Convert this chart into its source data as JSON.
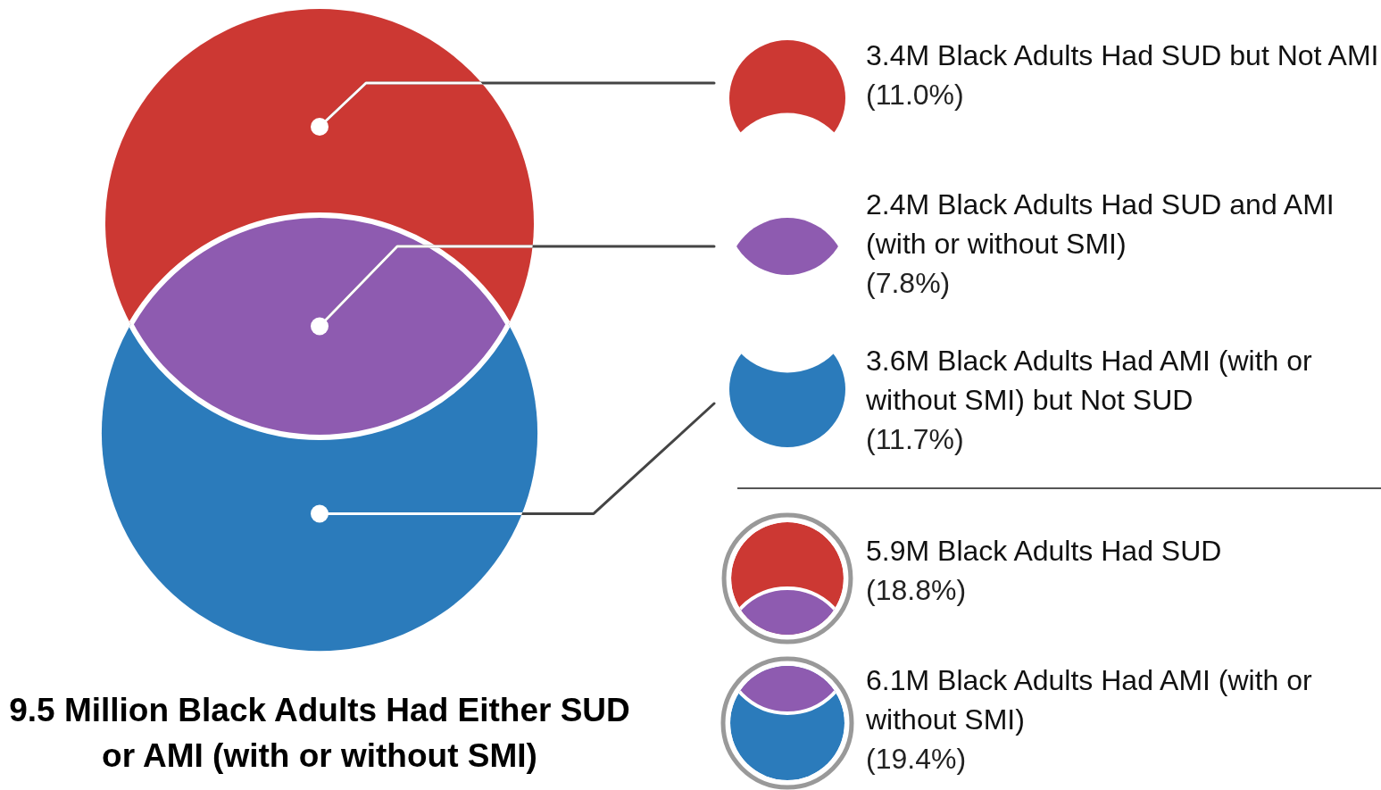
{
  "chart_data": {
    "type": "other",
    "title": "9.5 Million Black Adults Had Either SUD or AMI (with or without SMI)",
    "categories": [
      "Black Adults Had SUD but Not AMI",
      "Black Adults Had SUD and AMI (with or without SMI)",
      "Black Adults Had AMI (with or without SMI) but Not SUD",
      "Black Adults Had SUD",
      "Black Adults Had AMI (with or without SMI)"
    ],
    "colors": [
      "#cc3833",
      "#8e5bb0",
      "#2b7bbb",
      "#cc3833",
      "#2b7bbb"
    ],
    "series": [
      {
        "values": [
          3.4,
          2.4,
          3.6,
          5.9,
          6.1
        ],
        "value_labels": [
          "3.4M",
          "2.4M",
          "3.6M",
          "5.9M",
          "6.1M"
        ]
      },
      {
        "values": [
          11.0,
          7.8,
          11.7,
          18.8,
          19.4
        ],
        "value_labels": [
          "(11.0%)",
          "(7.8%)",
          "(11.7%)",
          "(18.8%)",
          "(19.4%)"
        ]
      }
    ]
  }
}
